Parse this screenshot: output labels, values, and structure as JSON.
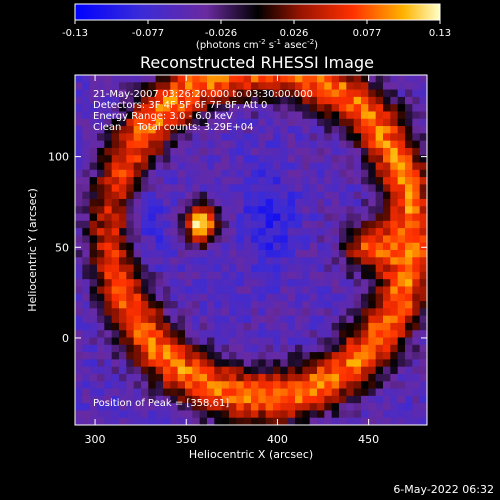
{
  "colorbar": {
    "tick_labels": [
      "-0.13",
      "-0.077",
      "-0.026",
      "0.026",
      "0.077",
      "0.13"
    ],
    "range": [
      -0.13,
      0.13
    ],
    "unit_text": "(photons cm",
    "unit_sup1": "-2",
    "unit_mid": " s",
    "unit_sup2": "-1",
    "unit_mid2": " asec",
    "unit_sup3": "-2",
    "unit_end": ")"
  },
  "chart_data": {
    "type": "heatmap",
    "title": "Reconstructed RHESSI Image",
    "xlabel": "Heliocentric X (arcsec)",
    "ylabel": "Heliocentric Y (arcsec)",
    "xlim": [
      289,
      482
    ],
    "ylim": [
      -48,
      145
    ],
    "x_ticks": [
      300,
      350,
      400,
      450
    ],
    "y_ticks": [
      0,
      50,
      100
    ],
    "annotations": [
      "21-May-2007 03:26:20.000 to 03:30:00.000",
      "Detectors: 3F 4F 5F 6F 7F 8F, Att 0",
      "Energy Range: 3.0 - 6.0 keV",
      "Clean     Total counts: 3.29E+04"
    ],
    "peak_label": "Position of Peak = [358,61]",
    "peak": [
      358,
      61
    ],
    "color_range": [
      -0.13,
      0.13
    ],
    "sources": [
      {
        "x": 358,
        "y": 63,
        "value": 0.13
      },
      {
        "x": 450,
        "y": 50,
        "value": 0.1
      },
      {
        "x": 330,
        "y": 30,
        "value": 0.08
      },
      {
        "x": 300,
        "y": 40,
        "value": 0.07
      }
    ]
  },
  "footer": {
    "date": "6-May-2022 06:32"
  }
}
